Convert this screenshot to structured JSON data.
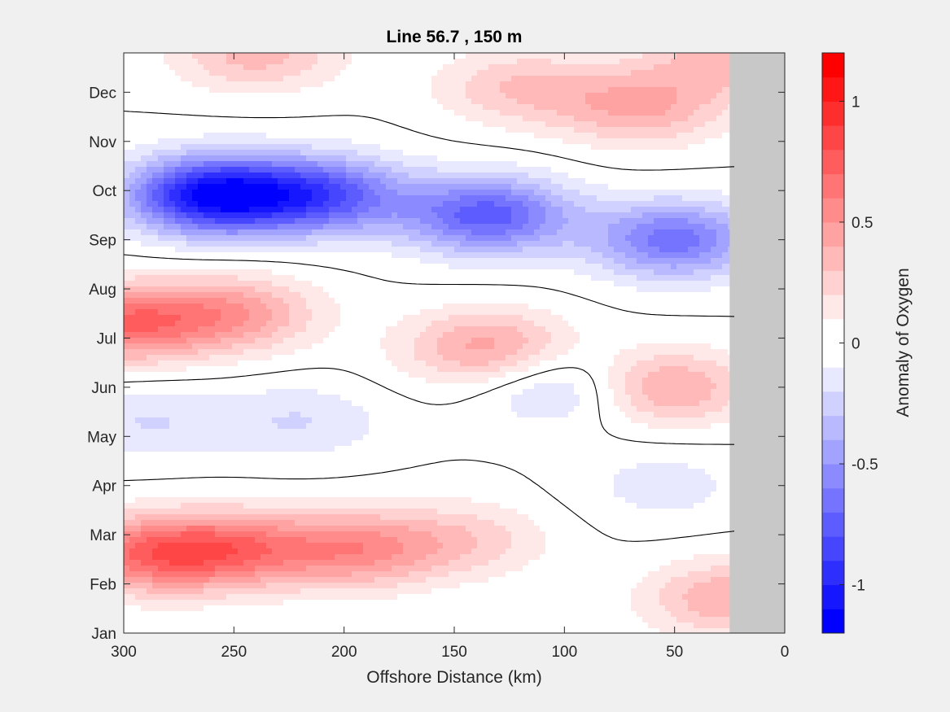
{
  "chart_data": {
    "type": "contour",
    "title": "Line 56.7 , 150 m",
    "xlabel": "Offshore Distance (km)",
    "ylabel": "",
    "x_direction": "reversed",
    "xlim": [
      300,
      0
    ],
    "xticks": [
      300,
      250,
      200,
      150,
      100,
      50,
      0
    ],
    "xtick_labels": [
      "300",
      "250",
      "200",
      "150",
      "100",
      "50",
      "0"
    ],
    "yticks": [
      "Jan",
      "Feb",
      "Mar",
      "Apr",
      "May",
      "Jun",
      "Jul",
      "Aug",
      "Sep",
      "Oct",
      "Nov",
      "Dec"
    ],
    "no_data_region_km": [
      25,
      0
    ],
    "zero_contour_color": "#000000",
    "colorbar": {
      "label": "Anomaly of Oxygen",
      "clim": [
        -1.2,
        1.2
      ],
      "ticks": [
        1,
        0.5,
        0,
        -0.5,
        -1
      ],
      "tick_labels": [
        "1",
        "0.5",
        "0",
        "-0.5",
        "-1"
      ],
      "levels": 24,
      "positive_color": "#ff0000",
      "negative_color": "#0000ff",
      "mid_color": "#ffffff",
      "nodata_color": "#c8c8c8"
    },
    "features": [
      {
        "kind": "max",
        "x_km": 290,
        "month": 1.6,
        "value": 0.6
      },
      {
        "kind": "max",
        "x_km": 250,
        "month": 1.7,
        "value": 0.55
      },
      {
        "kind": "max",
        "x_km": 195,
        "month": 1.7,
        "value": 0.5
      },
      {
        "kind": "max",
        "x_km": 145,
        "month": 1.9,
        "value": 0.25
      },
      {
        "kind": "max",
        "x_km": 25,
        "month": 0.7,
        "value": 0.4
      },
      {
        "kind": "min",
        "x_km": 55,
        "month": 3.0,
        "value": -0.15
      },
      {
        "kind": "min",
        "x_km": 290,
        "month": 4.3,
        "value": -0.2
      },
      {
        "kind": "min",
        "x_km": 220,
        "month": 4.3,
        "value": -0.2
      },
      {
        "kind": "min",
        "x_km": 100,
        "month": 5.0,
        "value": -0.3
      },
      {
        "kind": "max",
        "x_km": 55,
        "month": 5.0,
        "value": 0.45
      },
      {
        "kind": "max",
        "x_km": 135,
        "month": 5.8,
        "value": 0.45
      },
      {
        "kind": "max",
        "x_km": 300,
        "month": 6.3,
        "value": 0.65
      },
      {
        "kind": "max",
        "x_km": 250,
        "month": 6.5,
        "value": 0.45
      },
      {
        "kind": "min",
        "x_km": 260,
        "month": 8.9,
        "value": -1.1
      },
      {
        "kind": "min",
        "x_km": 210,
        "month": 8.9,
        "value": -0.75
      },
      {
        "kind": "min",
        "x_km": 135,
        "month": 8.5,
        "value": -0.75
      },
      {
        "kind": "min",
        "x_km": 50,
        "month": 8.0,
        "value": -0.65
      },
      {
        "kind": "max",
        "x_km": 65,
        "month": 10.7,
        "value": 0.4
      },
      {
        "kind": "max",
        "x_km": 120,
        "month": 11.1,
        "value": 0.3
      },
      {
        "kind": "max",
        "x_km": 240,
        "month": 11.8,
        "value": 0.35
      },
      {
        "kind": "max",
        "x_km": 25,
        "month": 11.7,
        "value": 0.35
      }
    ]
  }
}
